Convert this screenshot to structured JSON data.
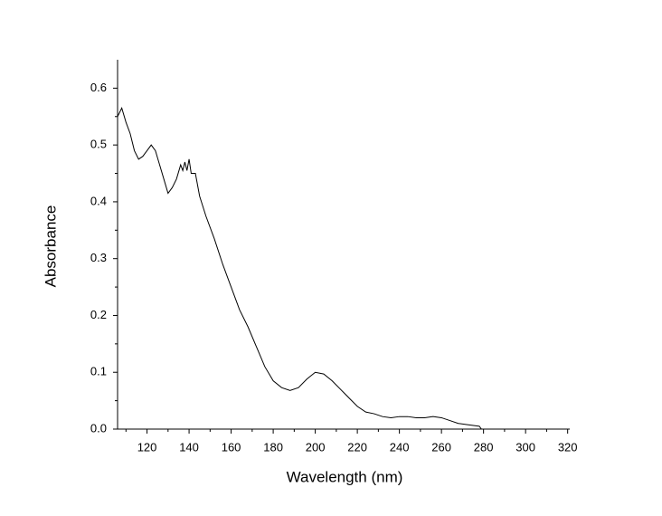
{
  "chart_data": {
    "type": "line",
    "x_label": "Wavelength (nm)",
    "y_label": "Absorbance",
    "x": [
      106,
      108,
      110,
      112,
      114,
      116,
      118,
      120,
      122,
      124,
      126,
      128,
      130,
      132,
      134,
      136,
      137,
      138,
      139,
      140,
      141,
      143,
      145,
      148,
      152,
      156,
      160,
      164,
      168,
      172,
      176,
      180,
      184,
      188,
      192,
      196,
      200,
      204,
      208,
      212,
      216,
      220,
      224,
      228,
      232,
      236,
      240,
      244,
      248,
      252,
      256,
      260,
      264,
      268,
      272,
      276,
      278,
      279
    ],
    "series": [
      {
        "color": "#000000",
        "values": [
          0.55,
          0.565,
          0.54,
          0.52,
          0.49,
          0.475,
          0.48,
          0.49,
          0.5,
          0.49,
          0.465,
          0.44,
          0.415,
          0.425,
          0.44,
          0.465,
          0.455,
          0.47,
          0.455,
          0.475,
          0.45,
          0.45,
          0.41,
          0.375,
          0.335,
          0.29,
          0.25,
          0.21,
          0.18,
          0.145,
          0.11,
          0.085,
          0.073,
          0.068,
          0.073,
          0.088,
          0.1,
          0.097,
          0.085,
          0.07,
          0.055,
          0.04,
          0.03,
          0.027,
          0.022,
          0.02,
          0.022,
          0.022,
          0.02,
          0.02,
          0.022,
          0.02,
          0.015,
          0.01,
          0.008,
          0.006,
          0.005,
          0.0
        ]
      }
    ],
    "xlim": [
      106,
      321
    ],
    "ylim": [
      0,
      0.65
    ],
    "xticks": [
      120,
      140,
      160,
      180,
      200,
      220,
      240,
      260,
      280,
      300,
      320
    ],
    "yticks": [
      {
        "value": 0,
        "label": "0.0"
      },
      0.1,
      0.2,
      0.3,
      0.4,
      0.5,
      0.6
    ],
    "xminorticks": [
      110,
      130,
      150,
      170,
      190,
      210,
      230,
      250,
      270,
      290,
      310
    ],
    "yminorticks": [
      0.05,
      0.15,
      0.25,
      0.35,
      0.45,
      0.55
    ]
  }
}
